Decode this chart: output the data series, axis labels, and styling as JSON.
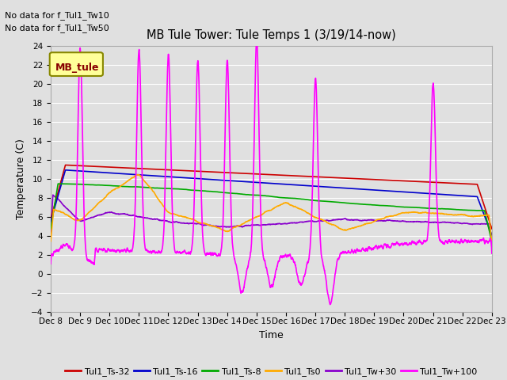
{
  "title": "MB Tule Tower: Tule Temps 1 (3/19/14-now)",
  "xlabel": "Time",
  "ylabel": "Temperature (C)",
  "no_data_text": [
    "No data for f_Tul1_Tw10",
    "No data for f_Tul1_Tw50"
  ],
  "legend_box_label": "MB_tule",
  "x_tick_labels": [
    "Dec 8",
    "Dec 9",
    "Dec 10",
    "Dec 11",
    "Dec 12",
    "Dec 13",
    "Dec 14",
    "Dec 15",
    "Dec 16",
    "Dec 17",
    "Dec 18",
    "Dec 19",
    "Dec 20",
    "Dec 21",
    "Dec 22",
    "Dec 23"
  ],
  "ylim": [
    -4,
    24
  ],
  "yticks": [
    -4,
    -2,
    0,
    2,
    4,
    6,
    8,
    10,
    12,
    14,
    16,
    18,
    20,
    22,
    24
  ],
  "background_color": "#e0e0e0",
  "plot_bg_color": "#e0e0e0",
  "grid_color": "#ffffff",
  "series": {
    "Tul1_Ts-32": {
      "color": "#cc0000",
      "linewidth": 1.2
    },
    "Tul1_Ts-16": {
      "color": "#0000cc",
      "linewidth": 1.2
    },
    "Tul1_Ts-8": {
      "color": "#00aa00",
      "linewidth": 1.2
    },
    "Tul1_Ts0": {
      "color": "#ffaa00",
      "linewidth": 1.2
    },
    "Tul1_Tw+30": {
      "color": "#8800cc",
      "linewidth": 1.2
    },
    "Tul1_Tw+100": {
      "color": "#ff00ff",
      "linewidth": 1.2
    }
  },
  "legend_series": [
    {
      "label": "Tul1_Ts-32",
      "color": "#cc0000"
    },
    {
      "label": "Tul1_Ts-16",
      "color": "#0000cc"
    },
    {
      "label": "Tul1_Ts-8",
      "color": "#00aa00"
    },
    {
      "label": "Tul1_Ts0",
      "color": "#ffaa00"
    },
    {
      "label": "Tul1_Tw+30",
      "color": "#8800cc"
    },
    {
      "label": "Tul1_Tw+100",
      "color": "#ff00ff"
    }
  ]
}
